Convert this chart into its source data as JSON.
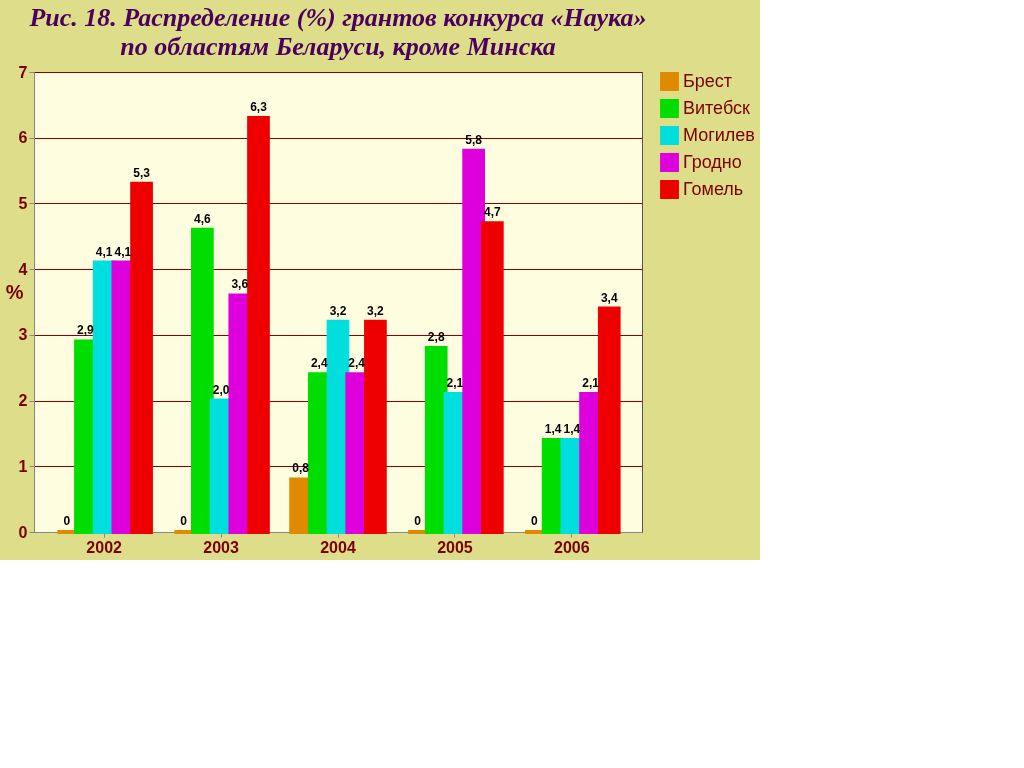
{
  "chart_data": {
    "type": "bar",
    "title": "Рис. 18. Распределение (%) грантов конкурса «Наука»",
    "subtitle": "по областям Беларуси, кроме Минска",
    "ylabel": "%",
    "categories": [
      "2002",
      "2003",
      "2004",
      "2005",
      "2006"
    ],
    "series": [
      {
        "name": "Брест",
        "color": "#e08a00",
        "values": [
          0,
          0,
          0.8,
          0,
          0
        ],
        "value_labels": [
          "0",
          "0",
          "0,8",
          "0",
          "0"
        ]
      },
      {
        "name": "Витебск",
        "color": "#00dd00",
        "values": [
          2.9,
          4.6,
          2.4,
          2.8,
          1.4
        ],
        "value_labels": [
          "2,9",
          "4,6",
          "2,4",
          "2,8",
          "1,4"
        ]
      },
      {
        "name": "Могилев",
        "color": "#00dede",
        "values": [
          4.1,
          2.0,
          3.2,
          2.1,
          1.4
        ],
        "value_labels": [
          "4,1",
          "2,0",
          "3,2",
          "2,1",
          "1,4"
        ]
      },
      {
        "name": "Гродно",
        "color": "#dd00dd",
        "values": [
          4.1,
          3.6,
          2.4,
          5.8,
          2.1
        ],
        "value_labels": [
          "4,1",
          "3,6",
          "2,4",
          "5,8",
          "2,1"
        ]
      },
      {
        "name": "Гомель",
        "color": "#ee0000",
        "values": [
          5.3,
          6.3,
          3.2,
          4.7,
          3.4
        ],
        "value_labels": [
          "5,3",
          "6,3",
          "3,2",
          "4,7",
          "3,4"
        ]
      }
    ],
    "ylim": [
      0,
      7
    ],
    "yticks": [
      0,
      1,
      2,
      3,
      4,
      5,
      6,
      7
    ],
    "grid": "y",
    "legend": "right"
  }
}
